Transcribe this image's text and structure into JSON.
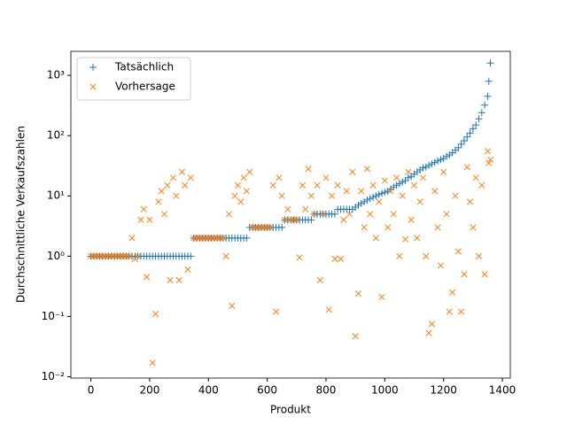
{
  "chart_data": {
    "type": "scatter",
    "xlabel": "Produkt",
    "ylabel": "Durchschnittliche Verkaufszahlen",
    "yscale": "log",
    "legend": "upper left",
    "xlim": [
      -68,
      1427
    ],
    "ylim": [
      0.0095,
      2500
    ],
    "xticks": [
      0,
      200,
      400,
      600,
      800,
      1000,
      1200,
      1400
    ],
    "yticks": [
      {
        "value": 0.01,
        "label": "10⁻²"
      },
      {
        "value": 0.1,
        "label": "10⁻¹"
      },
      {
        "value": 1,
        "label": "10⁰"
      },
      {
        "value": 10,
        "label": "10¹"
      },
      {
        "value": 100,
        "label": "10²"
      },
      {
        "value": 1000,
        "label": "10³"
      }
    ],
    "x": [
      0,
      10,
      20,
      30,
      40,
      50,
      60,
      70,
      80,
      90,
      100,
      110,
      120,
      130,
      140,
      150,
      160,
      170,
      180,
      190,
      200,
      210,
      220,
      230,
      240,
      250,
      260,
      270,
      280,
      290,
      300,
      310,
      320,
      330,
      340,
      350,
      360,
      370,
      380,
      390,
      400,
      410,
      420,
      430,
      440,
      450,
      460,
      470,
      480,
      490,
      500,
      510,
      520,
      530,
      540,
      550,
      560,
      570,
      580,
      590,
      600,
      610,
      620,
      630,
      640,
      650,
      660,
      670,
      680,
      690,
      700,
      710,
      720,
      730,
      740,
      750,
      760,
      770,
      780,
      790,
      800,
      810,
      820,
      830,
      840,
      850,
      860,
      870,
      880,
      890,
      900,
      910,
      920,
      930,
      940,
      950,
      960,
      970,
      980,
      990,
      1000,
      1010,
      1020,
      1030,
      1040,
      1050,
      1060,
      1070,
      1080,
      1090,
      1100,
      1110,
      1120,
      1130,
      1140,
      1150,
      1160,
      1170,
      1180,
      1190,
      1200,
      1210,
      1220,
      1230,
      1240,
      1250,
      1260,
      1270,
      1280,
      1290,
      1300,
      1310,
      1320,
      1330,
      1340,
      1350,
      1354,
      1359
    ],
    "series": [
      {
        "name": "Tatsächlich",
        "color": "#1f77b4",
        "marker": "+",
        "values": [
          1,
          1,
          1,
          1,
          1,
          1,
          1,
          1,
          1,
          1,
          1,
          1,
          1,
          1,
          1,
          1,
          1,
          1,
          1,
          1,
          1,
          1,
          1,
          1,
          1,
          1,
          1,
          1,
          1,
          1,
          1,
          1,
          1,
          1,
          1,
          2,
          2,
          2,
          2,
          2,
          2,
          2,
          2,
          2,
          2,
          2,
          2,
          2,
          2,
          2,
          2,
          2,
          2,
          2,
          3,
          3,
          3,
          3,
          3,
          3,
          3,
          3,
          3,
          3,
          3,
          3,
          4,
          4,
          4,
          4,
          4,
          4,
          4,
          4,
          4,
          4,
          5,
          5,
          5,
          5,
          5,
          5,
          5,
          5,
          6,
          6,
          6,
          6,
          6,
          6,
          6.5,
          7,
          7.5,
          8,
          8.5,
          9,
          9.5,
          10,
          10.5,
          11,
          11.5,
          12,
          13,
          14,
          15,
          16,
          17,
          18,
          20,
          21,
          23,
          25,
          27,
          29,
          30,
          32,
          34,
          36,
          38,
          40,
          42,
          45,
          48,
          52,
          57,
          63,
          72,
          82,
          95,
          110,
          130,
          150,
          190,
          240,
          320,
          450,
          800,
          1600
        ]
      },
      {
        "name": "Vorhersage",
        "color": "#ff7f0e",
        "marker": "x",
        "values": [
          1,
          1,
          1,
          1,
          1,
          1,
          1,
          1,
          1,
          1,
          1,
          1,
          1,
          1,
          2,
          0.9,
          1,
          4,
          6,
          0.45,
          4,
          0.017,
          0.11,
          8,
          12,
          5,
          15,
          0.4,
          20,
          10,
          0.4,
          25,
          15,
          0.6,
          20,
          2,
          2,
          2,
          2,
          2,
          2,
          2,
          2,
          2,
          2,
          2,
          1,
          5,
          0.15,
          10,
          15,
          8,
          20,
          12,
          25,
          3,
          3,
          3,
          3,
          3,
          3,
          3,
          15,
          0.12,
          20,
          10,
          4,
          6,
          4,
          4,
          4,
          0.95,
          15,
          6,
          28,
          10,
          5,
          15,
          0.4,
          5,
          20,
          0.13,
          10,
          0.9,
          15,
          0.9,
          4,
          12,
          5,
          25,
          0.047,
          0.24,
          12,
          3,
          28,
          5,
          15,
          2,
          8,
          0.21,
          18,
          3,
          12,
          5,
          20,
          1,
          10,
          1.9,
          25,
          4,
          15,
          2,
          8,
          20,
          1,
          0.053,
          0.075,
          12,
          3,
          0.7,
          25,
          5,
          0.12,
          0.25,
          10,
          1.2,
          0.12,
          0.5,
          30,
          8,
          3,
          20,
          1,
          15,
          0.5,
          55,
          35,
          40
        ]
      }
    ]
  }
}
